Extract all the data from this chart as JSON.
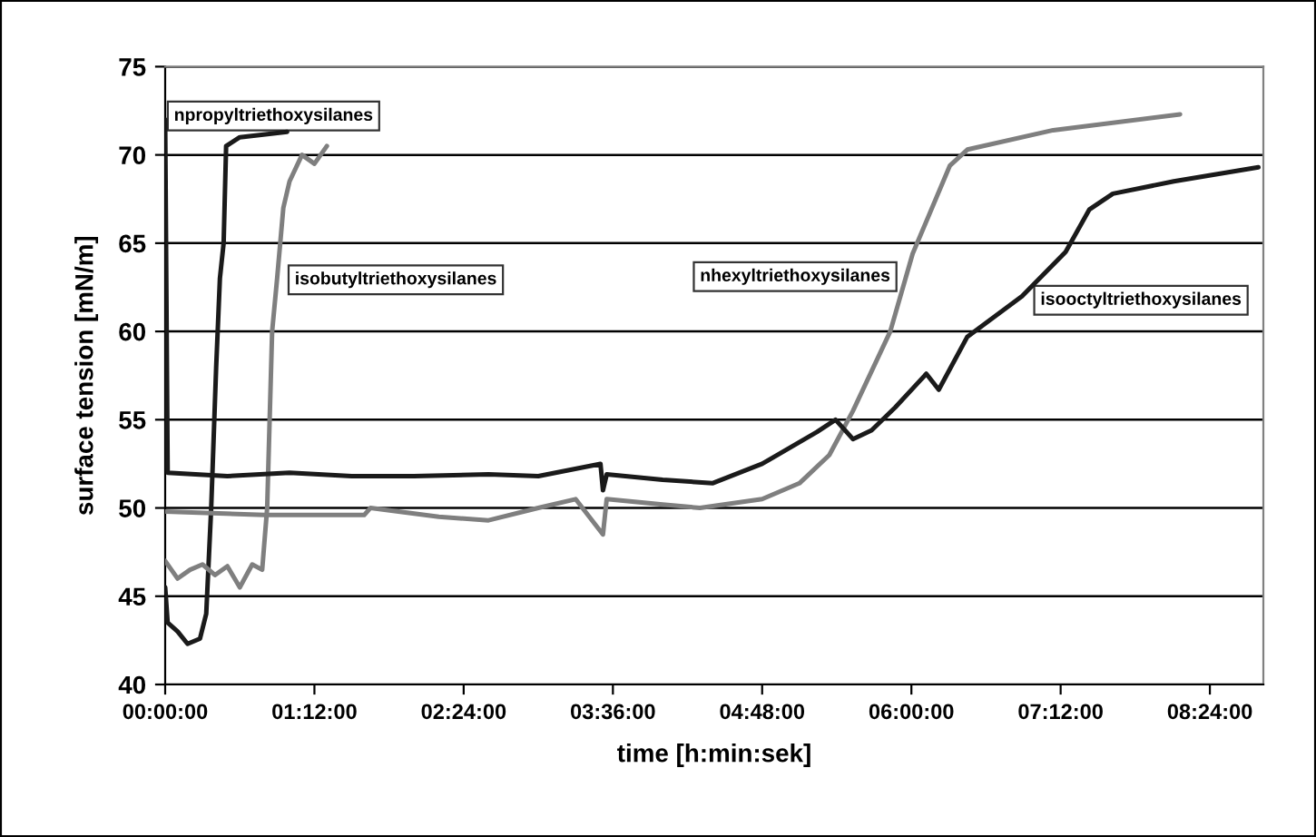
{
  "chart_data": {
    "type": "line",
    "xlabel": "time [h:min:sek]",
    "ylabel": "surface tension [mN/m]",
    "xlim": [
      0,
      8.83
    ],
    "ylim": [
      40,
      75
    ],
    "xticks": [
      {
        "value": 0,
        "label": "00:00:00"
      },
      {
        "value": 1.2,
        "label": "01:12:00"
      },
      {
        "value": 2.4,
        "label": "02:24:00"
      },
      {
        "value": 3.6,
        "label": "03:36:00"
      },
      {
        "value": 4.8,
        "label": "04:48:00"
      },
      {
        "value": 6.0,
        "label": "06:00:00"
      },
      {
        "value": 7.2,
        "label": "07:12:00"
      },
      {
        "value": 8.4,
        "label": "08:24:00"
      }
    ],
    "yticks": [
      40,
      45,
      50,
      55,
      60,
      65,
      70,
      75
    ],
    "grid": "y",
    "legend": false,
    "marker": "none",
    "line_style": "solid",
    "series": [
      {
        "name": "npropyltriethoxysilanes",
        "color": "#1a1a1a",
        "x": [
          0,
          0.02,
          0.1,
          0.18,
          0.28,
          0.33,
          0.37,
          0.41,
          0.44,
          0.47,
          0.49,
          0.6,
          0.98
        ],
        "values": [
          45.5,
          43.5,
          43,
          42.3,
          42.6,
          44,
          50,
          58,
          63,
          65,
          70.5,
          71,
          71.3
        ]
      },
      {
        "name": "isobutyltriethoxysilanes",
        "color": "#7f7f7f",
        "x": [
          0,
          0.1,
          0.2,
          0.3,
          0.4,
          0.5,
          0.6,
          0.7,
          0.78,
          0.82,
          0.86,
          0.9,
          0.95,
          1.0,
          1.1,
          1.2,
          1.3
        ],
        "values": [
          47,
          46,
          46.5,
          46.8,
          46.2,
          46.7,
          45.5,
          46.8,
          46.5,
          50,
          60,
          63,
          67,
          68.5,
          70,
          69.5,
          70.5
        ]
      },
      {
        "name": "nhexyltriethoxysilanes",
        "color": "#7f7f7f",
        "x": [
          0,
          0.8,
          1.6,
          1.65,
          2.2,
          2.6,
          3.0,
          3.3,
          3.52,
          3.55,
          4.0,
          4.3,
          4.8,
          5.1,
          5.34,
          5.53,
          5.83,
          6.01,
          6.31,
          6.45,
          7.14,
          8.16
        ],
        "values": [
          49.8,
          49.6,
          49.6,
          50,
          49.5,
          49.3,
          50,
          50.5,
          48.5,
          50.5,
          50.2,
          50,
          50.5,
          51.4,
          53,
          55.5,
          60,
          64.4,
          69.4,
          70.3,
          71.4,
          72.3
        ]
      },
      {
        "name": "isooctyltriethoxysilanes",
        "color": "#1a1a1a",
        "x": [
          0,
          0.02,
          0.5,
          1.0,
          1.5,
          2.0,
          2.6,
          3.0,
          3.5,
          3.52,
          3.55,
          4.0,
          4.4,
          4.8,
          5.24,
          5.39,
          5.53,
          5.68,
          5.87,
          6.12,
          6.22,
          6.45,
          6.89,
          7.24,
          7.43,
          7.62,
          8.11,
          8.79
        ],
        "values": [
          72,
          52,
          51.8,
          52,
          51.8,
          51.8,
          51.9,
          51.8,
          52.5,
          51,
          51.9,
          51.6,
          51.4,
          52.5,
          54.3,
          55,
          53.9,
          54.4,
          55.7,
          57.6,
          56.7,
          59.7,
          62,
          64.5,
          66.9,
          67.8,
          68.5,
          69.3
        ]
      }
    ]
  }
}
